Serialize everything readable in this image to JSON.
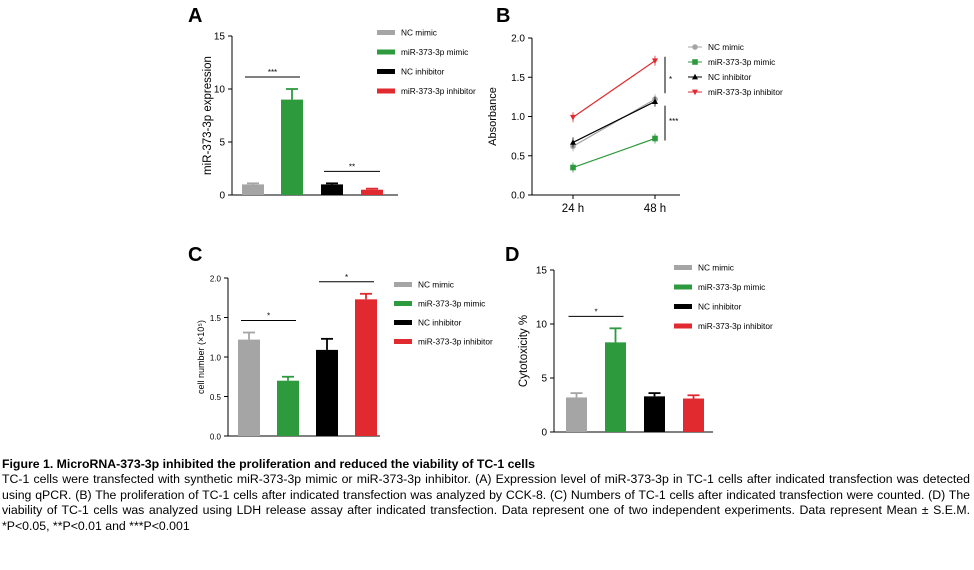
{
  "colors": {
    "gray": "#a5a5a5",
    "green": "#2e9a3e",
    "black": "#000000",
    "red": "#e02a2f"
  },
  "panels": [
    "A",
    "B",
    "C",
    "D"
  ],
  "legend_labels": [
    "NC mimic",
    "miR-373-3p mimic",
    "NC inhibitor",
    "miR-373-3p inhibitor"
  ],
  "chart_data": [
    {
      "panel": "A",
      "type": "bar",
      "categories": [
        "NC mimic",
        "miR-373-3p mimic",
        "NC inhibitor",
        "miR-373-3p inhibitor"
      ],
      "values": [
        1.0,
        9.0,
        1.0,
        0.5
      ],
      "errors": [
        0.1,
        1.0,
        0.1,
        0.1
      ],
      "colors": [
        "#a5a5a5",
        "#2e9a3e",
        "#000000",
        "#e02a2f"
      ],
      "ylabel": "miR-373-3p expression",
      "ylim": [
        0,
        15
      ],
      "yticks": [
        "0",
        "5",
        "10",
        "15"
      ],
      "legend": "right",
      "significance": [
        {
          "between": [
            0,
            1
          ],
          "label": "***"
        },
        {
          "between": [
            2,
            3
          ],
          "label": "**"
        }
      ]
    },
    {
      "panel": "B",
      "type": "line",
      "x": [
        "24 h",
        "48 h"
      ],
      "series": [
        {
          "name": "NC mimic",
          "values": [
            0.62,
            1.22
          ],
          "color": "#a5a5a5",
          "marker": "circle"
        },
        {
          "name": "miR-373-3p mimic",
          "values": [
            0.35,
            0.72
          ],
          "color": "#2e9a3e",
          "marker": "square"
        },
        {
          "name": "NC inhibitor",
          "values": [
            0.67,
            1.19
          ],
          "color": "#000000",
          "marker": "triangle"
        },
        {
          "name": "miR-373-3p inhibitor",
          "values": [
            0.99,
            1.71
          ],
          "color": "#e02a2f",
          "marker": "triangle-down"
        }
      ],
      "ylabel": "Absorbance",
      "ylim": [
        0,
        2.0
      ],
      "yticks": [
        "0.0",
        "0.5",
        "1.0",
        "1.5",
        "2.0"
      ],
      "legend": "right",
      "significance": [
        {
          "label": "*"
        },
        {
          "label": "***"
        }
      ]
    },
    {
      "panel": "C",
      "type": "bar",
      "categories": [
        "NC mimic",
        "miR-373-3p mimic",
        "NC inhibitor",
        "miR-373-3p inhibitor"
      ],
      "values": [
        1.22,
        0.7,
        1.09,
        1.73
      ],
      "errors": [
        0.09,
        0.05,
        0.14,
        0.07
      ],
      "colors": [
        "#a5a5a5",
        "#2e9a3e",
        "#000000",
        "#e02a2f"
      ],
      "ylabel": "cell number (×10⁵)",
      "ylim": [
        0,
        2.0
      ],
      "yticks": [
        "0.0",
        "0.5",
        "1.0",
        "1.5",
        "2.0"
      ],
      "legend": "right",
      "significance": [
        {
          "between": [
            0,
            1
          ],
          "label": "*"
        },
        {
          "between": [
            2,
            3
          ],
          "label": "*"
        }
      ]
    },
    {
      "panel": "D",
      "type": "bar",
      "categories": [
        "NC mimic",
        "miR-373-3p mimic",
        "NC inhibitor",
        "miR-373-3p inhibitor"
      ],
      "values": [
        3.2,
        8.3,
        3.3,
        3.1
      ],
      "errors": [
        0.4,
        1.3,
        0.3,
        0.3
      ],
      "colors": [
        "#a5a5a5",
        "#2e9a3e",
        "#000000",
        "#e02a2f"
      ],
      "ylabel": "Cytotoxicity %",
      "ylim": [
        0,
        15
      ],
      "yticks": [
        "0",
        "5",
        "10",
        "15"
      ],
      "legend": "right",
      "significance": [
        {
          "between": [
            0,
            1
          ],
          "label": "*"
        }
      ]
    }
  ],
  "caption": {
    "title": "Figure 1. MicroRNA-373-3p inhibited the proliferation and reduced the viability of TC-1 cells",
    "body": "TC-1 cells were transfected with synthetic miR-373-3p mimic or miR-373-3p inhibitor. (A) Expression level of miR-373-3p in TC-1 cells after indicated transfection was detected using qPCR. (B) The proliferation of TC-1 cells after indicated transfection was analyzed by CCK-8. (C) Numbers of TC-1 cells after indicated transfection were counted. (D) The viability of TC-1 cells was analyzed using LDH release assay after indicated transfection. Data represent one of two independent experiments. Data represent Mean ± S.E.M. *P<0.05, **P<0.01 and ***P<0.001"
  }
}
